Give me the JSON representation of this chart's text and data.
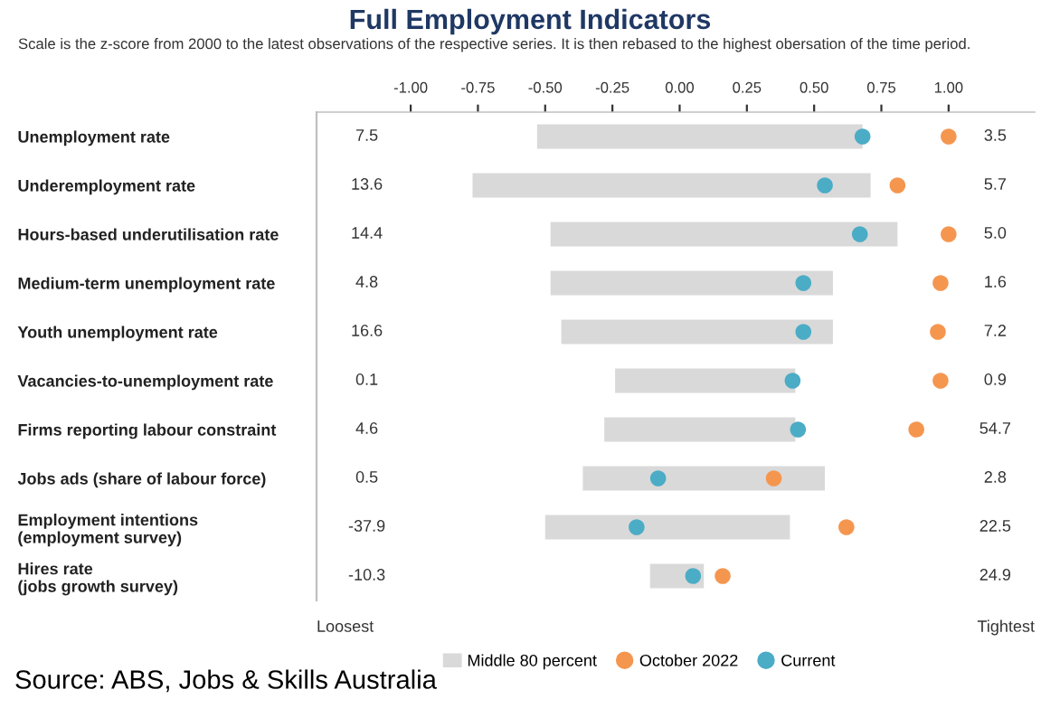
{
  "chart_data": {
    "type": "bar",
    "orientation": "horizontal",
    "title": "Full Employment Indicators",
    "subtitle": "Scale is the z-score from 2000 to the latest observations of the respective series. It is then rebased to the highest obersation of the time period.",
    "categories": [
      "Unemployment rate",
      "Underemployment rate",
      "Hours-based underutilisation rate",
      "Medium-term unemployment rate",
      "Youth unemployment rate",
      "Vacancies-to-unemployment rate",
      "Firms reporting labour constraint",
      "Jobs ads (share of labour force)",
      "Employment intentions\n(employment survey)",
      "Hires rate\n(jobs growth survey)"
    ],
    "series": [
      {
        "name": "Middle 80 percent",
        "color": "#d9d9d9",
        "base": [
          -0.53,
          -0.77,
          -0.48,
          -0.48,
          -0.44,
          -0.24,
          -0.28,
          -0.36,
          -0.5,
          -0.11
        ],
        "values": [
          1.21,
          1.48,
          1.29,
          1.05,
          1.01,
          0.67,
          0.71,
          0.9,
          0.91,
          0.2
        ]
      },
      {
        "name": "October 2022",
        "type": "scatter",
        "color": "#f5964f",
        "values": [
          1.0,
          0.81,
          1.0,
          0.97,
          0.96,
          0.97,
          0.88,
          0.35,
          0.62,
          0.16
        ]
      },
      {
        "name": "Current",
        "type": "scatter",
        "color": "#4bacc6",
        "values": [
          0.68,
          0.54,
          0.67,
          0.46,
          0.46,
          0.42,
          0.44,
          -0.08,
          -0.16,
          0.05
        ]
      }
    ],
    "xlim": [
      -1.35,
      1.32
    ],
    "xticks": [
      {
        "value": -1,
        "label": "-1.00"
      },
      {
        "value": -0.75,
        "label": "-0.75"
      },
      {
        "value": -0.5,
        "label": "-0.50"
      },
      {
        "value": -0.25,
        "label": "-0.25"
      },
      {
        "value": 0,
        "label": "0.00"
      },
      {
        "value": 0.25,
        "label": "0.25"
      },
      {
        "value": 0.5,
        "label": "0.50"
      },
      {
        "value": 0.75,
        "label": "0.75"
      },
      {
        "value": 1,
        "label": "1.00"
      }
    ],
    "marker": "circle",
    "grid": false,
    "legend": "bottom",
    "annotations": [
      "7.5",
      "3.5",
      "13.6",
      "5.7",
      "14.4",
      "5.0",
      "4.8",
      "1.6",
      "16.6",
      "7.2",
      "0.1",
      "0.9",
      "4.6",
      "54.7",
      "0.5",
      "2.8",
      "-37.9",
      "22.5",
      "-10.3",
      "24.9",
      "Loosest",
      "Tightest",
      "Source: ABS, Jobs & Skills Australia"
    ]
  }
}
